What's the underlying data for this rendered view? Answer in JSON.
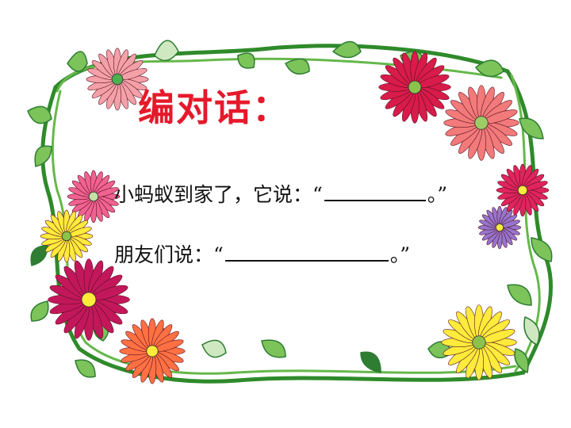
{
  "title": "编对话：",
  "lines": [
    {
      "prefix": "小蚂蚁到家了，它说：“",
      "suffix": "。”"
    },
    {
      "prefix": "朋友们说：“",
      "suffix": "。”"
    }
  ],
  "colors": {
    "title": "#e6192b",
    "vine": "#2f8a2a",
    "leaf": "#7cc35a",
    "leaf_dark": "#2e7d32"
  },
  "decoration": {
    "flowers": [
      {
        "color": "#f4a0a8",
        "center": "#4caf50"
      },
      {
        "color": "#d81b4a",
        "center": "#8bc34a"
      },
      {
        "color": "#f27a7a",
        "center": "#9ccc65"
      },
      {
        "color": "#e0245e",
        "center": "#ffeb3b"
      },
      {
        "color": "#9575cd",
        "center": "#ffeb3b"
      },
      {
        "color": "#f06292",
        "center": "#c5e1a5"
      },
      {
        "color": "#ffeb3b",
        "center": "#8bc34a"
      },
      {
        "color": "#c2185b",
        "center": "#ffeb3b"
      },
      {
        "color": "#ff7043",
        "center": "#ffeb3b"
      },
      {
        "color": "#ffeb3b",
        "center": "#8bc34a"
      }
    ]
  }
}
